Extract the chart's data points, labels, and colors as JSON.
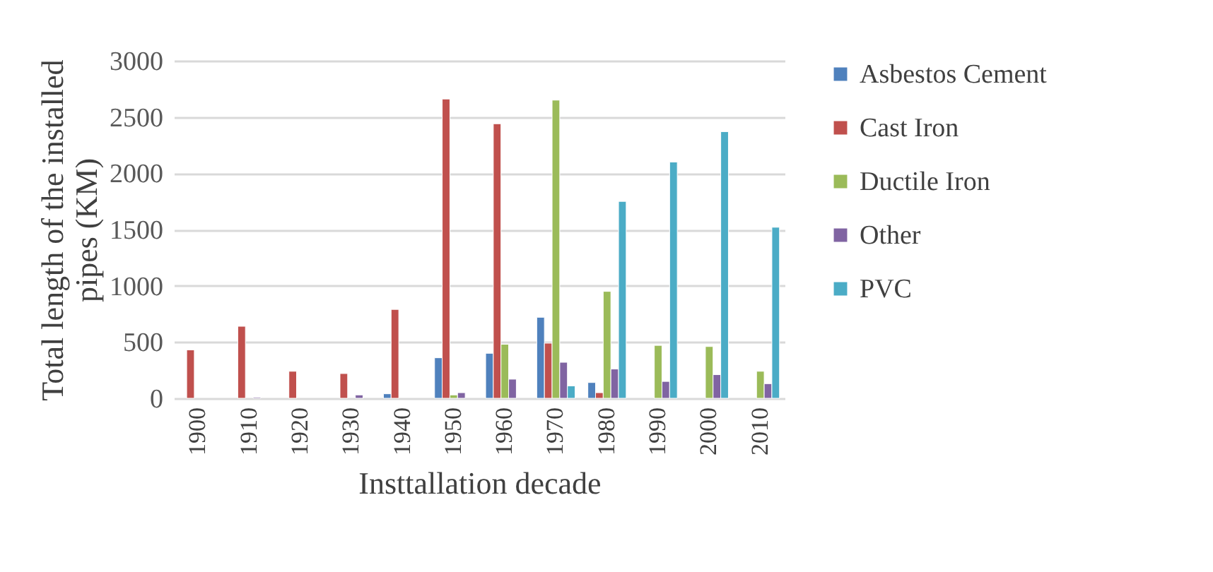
{
  "chart_data": {
    "type": "bar",
    "xlabel": "Insttallation decade",
    "ylabel": "Total length of the installed pipes (KM)",
    "categories": [
      "1900",
      "1910",
      "1920",
      "1930",
      "1940",
      "1950",
      "1960",
      "1970",
      "1980",
      "1990",
      "2000",
      "2010"
    ],
    "series": [
      {
        "name": "Asbestos Cement",
        "color": "#4f81bd",
        "values": [
          null,
          null,
          null,
          null,
          40,
          360,
          400,
          720,
          140,
          null,
          null,
          null
        ]
      },
      {
        "name": "Cast Iron",
        "color": "#c0504d",
        "values": [
          430,
          640,
          240,
          220,
          790,
          2660,
          2440,
          490,
          50,
          null,
          null,
          null
        ]
      },
      {
        "name": "Ductile Iron",
        "color": "#9bbb59",
        "values": [
          null,
          null,
          null,
          null,
          null,
          30,
          480,
          2650,
          950,
          470,
          460,
          240
        ]
      },
      {
        "name": "Other",
        "color": "#8064a2",
        "values": [
          null,
          10,
          null,
          30,
          null,
          50,
          170,
          320,
          260,
          150,
          210,
          130
        ]
      },
      {
        "name": "PVC",
        "color": "#4bacc6",
        "values": [
          null,
          null,
          null,
          null,
          null,
          null,
          null,
          110,
          1750,
          2100,
          2370,
          1520
        ]
      }
    ],
    "ylim": [
      0,
      3000
    ],
    "yticks": [
      0,
      500,
      1000,
      1500,
      2000,
      2500,
      3000
    ],
    "grid": "y",
    "legend": "right"
  }
}
